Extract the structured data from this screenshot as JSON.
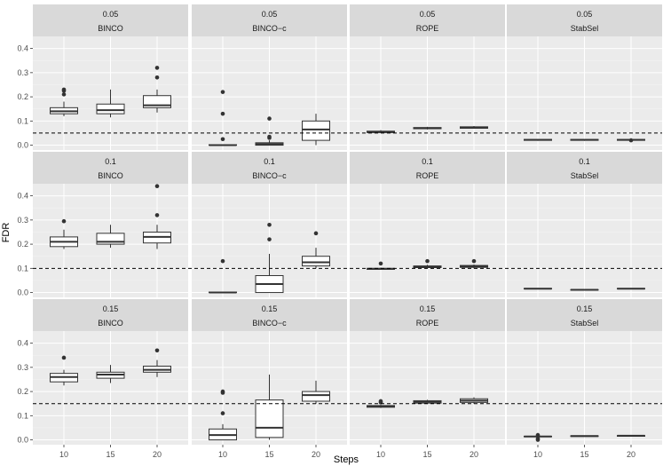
{
  "chart_data": {
    "type": "boxplot",
    "xlabel": "Steps",
    "ylabel": "FDR",
    "x_categories": [
      "10",
      "15",
      "20"
    ],
    "ylim": [
      -0.02,
      0.45
    ],
    "y_ticks": [
      0.0,
      0.1,
      0.2,
      0.3,
      0.4
    ],
    "y_tick_labels": [
      "0.0",
      "0.1",
      "0.2",
      "0.3",
      "0.4"
    ],
    "methods": [
      "BINCO",
      "BINCO−c",
      "ROPE",
      "StabSel"
    ],
    "rows": [
      {
        "label": "0.05",
        "threshold": 0.05,
        "panels": [
          {
            "method": "BINCO",
            "boxes": [
              {
                "x": "10",
                "min": 0.12,
                "q1": 0.13,
                "median": 0.14,
                "q3": 0.155,
                "max": 0.18,
                "outliers": [
                  0.21,
                  0.225,
                  0.23
                ]
              },
              {
                "x": "15",
                "min": 0.115,
                "q1": 0.13,
                "median": 0.145,
                "q3": 0.17,
                "max": 0.23,
                "outliers": []
              },
              {
                "x": "20",
                "min": 0.135,
                "q1": 0.155,
                "median": 0.165,
                "q3": 0.205,
                "max": 0.23,
                "outliers": [
                  0.28,
                  0.32
                ]
              }
            ]
          },
          {
            "method": "BINCO−c",
            "boxes": [
              {
                "x": "10",
                "min": 0.0,
                "q1": 0.0,
                "median": 0.0,
                "q3": 0.002,
                "max": 0.002,
                "outliers": [
                  0.025,
                  0.13,
                  0.22
                ]
              },
              {
                "x": "15",
                "min": 0.0,
                "q1": 0.0,
                "median": 0.005,
                "q3": 0.01,
                "max": 0.02,
                "outliers": [
                  0.03,
                  0.035,
                  0.11
                ]
              },
              {
                "x": "20",
                "min": 0.0,
                "q1": 0.02,
                "median": 0.065,
                "q3": 0.1,
                "max": 0.13,
                "outliers": []
              }
            ]
          },
          {
            "method": "ROPE",
            "boxes": [
              {
                "x": "10",
                "min": 0.05,
                "q1": 0.052,
                "median": 0.055,
                "q3": 0.058,
                "max": 0.062,
                "outliers": []
              },
              {
                "x": "15",
                "min": 0.065,
                "q1": 0.068,
                "median": 0.07,
                "q3": 0.073,
                "max": 0.076,
                "outliers": []
              },
              {
                "x": "20",
                "min": 0.068,
                "q1": 0.07,
                "median": 0.073,
                "q3": 0.076,
                "max": 0.079,
                "outliers": []
              }
            ]
          },
          {
            "method": "StabSel",
            "boxes": [
              {
                "x": "10",
                "min": 0.018,
                "q1": 0.02,
                "median": 0.022,
                "q3": 0.024,
                "max": 0.026,
                "outliers": []
              },
              {
                "x": "15",
                "min": 0.018,
                "q1": 0.02,
                "median": 0.022,
                "q3": 0.024,
                "max": 0.026,
                "outliers": []
              },
              {
                "x": "20",
                "min": 0.018,
                "q1": 0.02,
                "median": 0.022,
                "q3": 0.024,
                "max": 0.026,
                "outliers": [
                  0.02
                ]
              }
            ]
          }
        ]
      },
      {
        "label": "0.1",
        "threshold": 0.1,
        "panels": [
          {
            "method": "BINCO",
            "boxes": [
              {
                "x": "10",
                "min": 0.18,
                "q1": 0.19,
                "median": 0.21,
                "q3": 0.23,
                "max": 0.26,
                "outliers": [
                  0.295
                ]
              },
              {
                "x": "15",
                "min": 0.185,
                "q1": 0.2,
                "median": 0.21,
                "q3": 0.245,
                "max": 0.28,
                "outliers": []
              },
              {
                "x": "20",
                "min": 0.18,
                "q1": 0.205,
                "median": 0.23,
                "q3": 0.25,
                "max": 0.28,
                "outliers": [
                  0.32,
                  0.44
                ]
              }
            ]
          },
          {
            "method": "BINCO−c",
            "boxes": [
              {
                "x": "10",
                "min": 0.0,
                "q1": 0.0,
                "median": 0.0,
                "q3": 0.002,
                "max": 0.002,
                "outliers": [
                  0.13
                ]
              },
              {
                "x": "15",
                "min": 0.0,
                "q1": 0.0,
                "median": 0.035,
                "q3": 0.07,
                "max": 0.16,
                "outliers": [
                  0.22,
                  0.28
                ]
              },
              {
                "x": "20",
                "min": 0.1,
                "q1": 0.11,
                "median": 0.125,
                "q3": 0.15,
                "max": 0.185,
                "outliers": [
                  0.245
                ]
              }
            ]
          },
          {
            "method": "ROPE",
            "boxes": [
              {
                "x": "10",
                "min": 0.094,
                "q1": 0.096,
                "median": 0.098,
                "q3": 0.1,
                "max": 0.103,
                "outliers": [
                  0.12
                ]
              },
              {
                "x": "15",
                "min": 0.1,
                "q1": 0.103,
                "median": 0.106,
                "q3": 0.11,
                "max": 0.115,
                "outliers": [
                  0.13
                ]
              },
              {
                "x": "20",
                "min": 0.1,
                "q1": 0.104,
                "median": 0.108,
                "q3": 0.112,
                "max": 0.116,
                "outliers": [
                  0.13
                ]
              }
            ]
          },
          {
            "method": "StabSel",
            "boxes": [
              {
                "x": "10",
                "min": 0.014,
                "q1": 0.015,
                "median": 0.016,
                "q3": 0.017,
                "max": 0.018,
                "outliers": []
              },
              {
                "x": "15",
                "min": 0.009,
                "q1": 0.01,
                "median": 0.011,
                "q3": 0.012,
                "max": 0.013,
                "outliers": []
              },
              {
                "x": "20",
                "min": 0.014,
                "q1": 0.015,
                "median": 0.016,
                "q3": 0.017,
                "max": 0.018,
                "outliers": []
              }
            ]
          }
        ]
      },
      {
        "label": "0.15",
        "threshold": 0.15,
        "panels": [
          {
            "method": "BINCO",
            "boxes": [
              {
                "x": "10",
                "min": 0.225,
                "q1": 0.24,
                "median": 0.26,
                "q3": 0.275,
                "max": 0.29,
                "outliers": [
                  0.34
                ]
              },
              {
                "x": "15",
                "min": 0.235,
                "q1": 0.255,
                "median": 0.27,
                "q3": 0.28,
                "max": 0.31,
                "outliers": []
              },
              {
                "x": "20",
                "min": 0.26,
                "q1": 0.28,
                "median": 0.29,
                "q3": 0.305,
                "max": 0.33,
                "outliers": [
                  0.37
                ]
              }
            ]
          },
          {
            "method": "BINCO−c",
            "boxes": [
              {
                "x": "10",
                "min": 0.0,
                "q1": 0.0,
                "median": 0.02,
                "q3": 0.045,
                "max": 0.065,
                "outliers": [
                  0.11,
                  0.195,
                  0.2
                ]
              },
              {
                "x": "15",
                "min": 0.0,
                "q1": 0.01,
                "median": 0.05,
                "q3": 0.165,
                "max": 0.27,
                "outliers": []
              },
              {
                "x": "20",
                "min": 0.15,
                "q1": 0.16,
                "median": 0.185,
                "q3": 0.2,
                "max": 0.245,
                "outliers": []
              }
            ]
          },
          {
            "method": "ROPE",
            "boxes": [
              {
                "x": "10",
                "min": 0.132,
                "q1": 0.135,
                "median": 0.138,
                "q3": 0.142,
                "max": 0.145,
                "outliers": [
                  0.155,
                  0.16
                ]
              },
              {
                "x": "15",
                "min": 0.148,
                "q1": 0.152,
                "median": 0.157,
                "q3": 0.162,
                "max": 0.166,
                "outliers": []
              },
              {
                "x": "20",
                "min": 0.15,
                "q1": 0.155,
                "median": 0.162,
                "q3": 0.17,
                "max": 0.176,
                "outliers": []
              }
            ]
          },
          {
            "method": "StabSel",
            "boxes": [
              {
                "x": "10",
                "min": 0.012,
                "q1": 0.013,
                "median": 0.014,
                "q3": 0.015,
                "max": 0.016,
                "outliers": [
                  0.0,
                  0.005,
                  0.02
                ]
              },
              {
                "x": "15",
                "min": 0.013,
                "q1": 0.014,
                "median": 0.016,
                "q3": 0.017,
                "max": 0.018,
                "outliers": []
              },
              {
                "x": "20",
                "min": 0.014,
                "q1": 0.015,
                "median": 0.017,
                "q3": 0.018,
                "max": 0.019,
                "outliers": []
              }
            ]
          }
        ]
      }
    ]
  }
}
